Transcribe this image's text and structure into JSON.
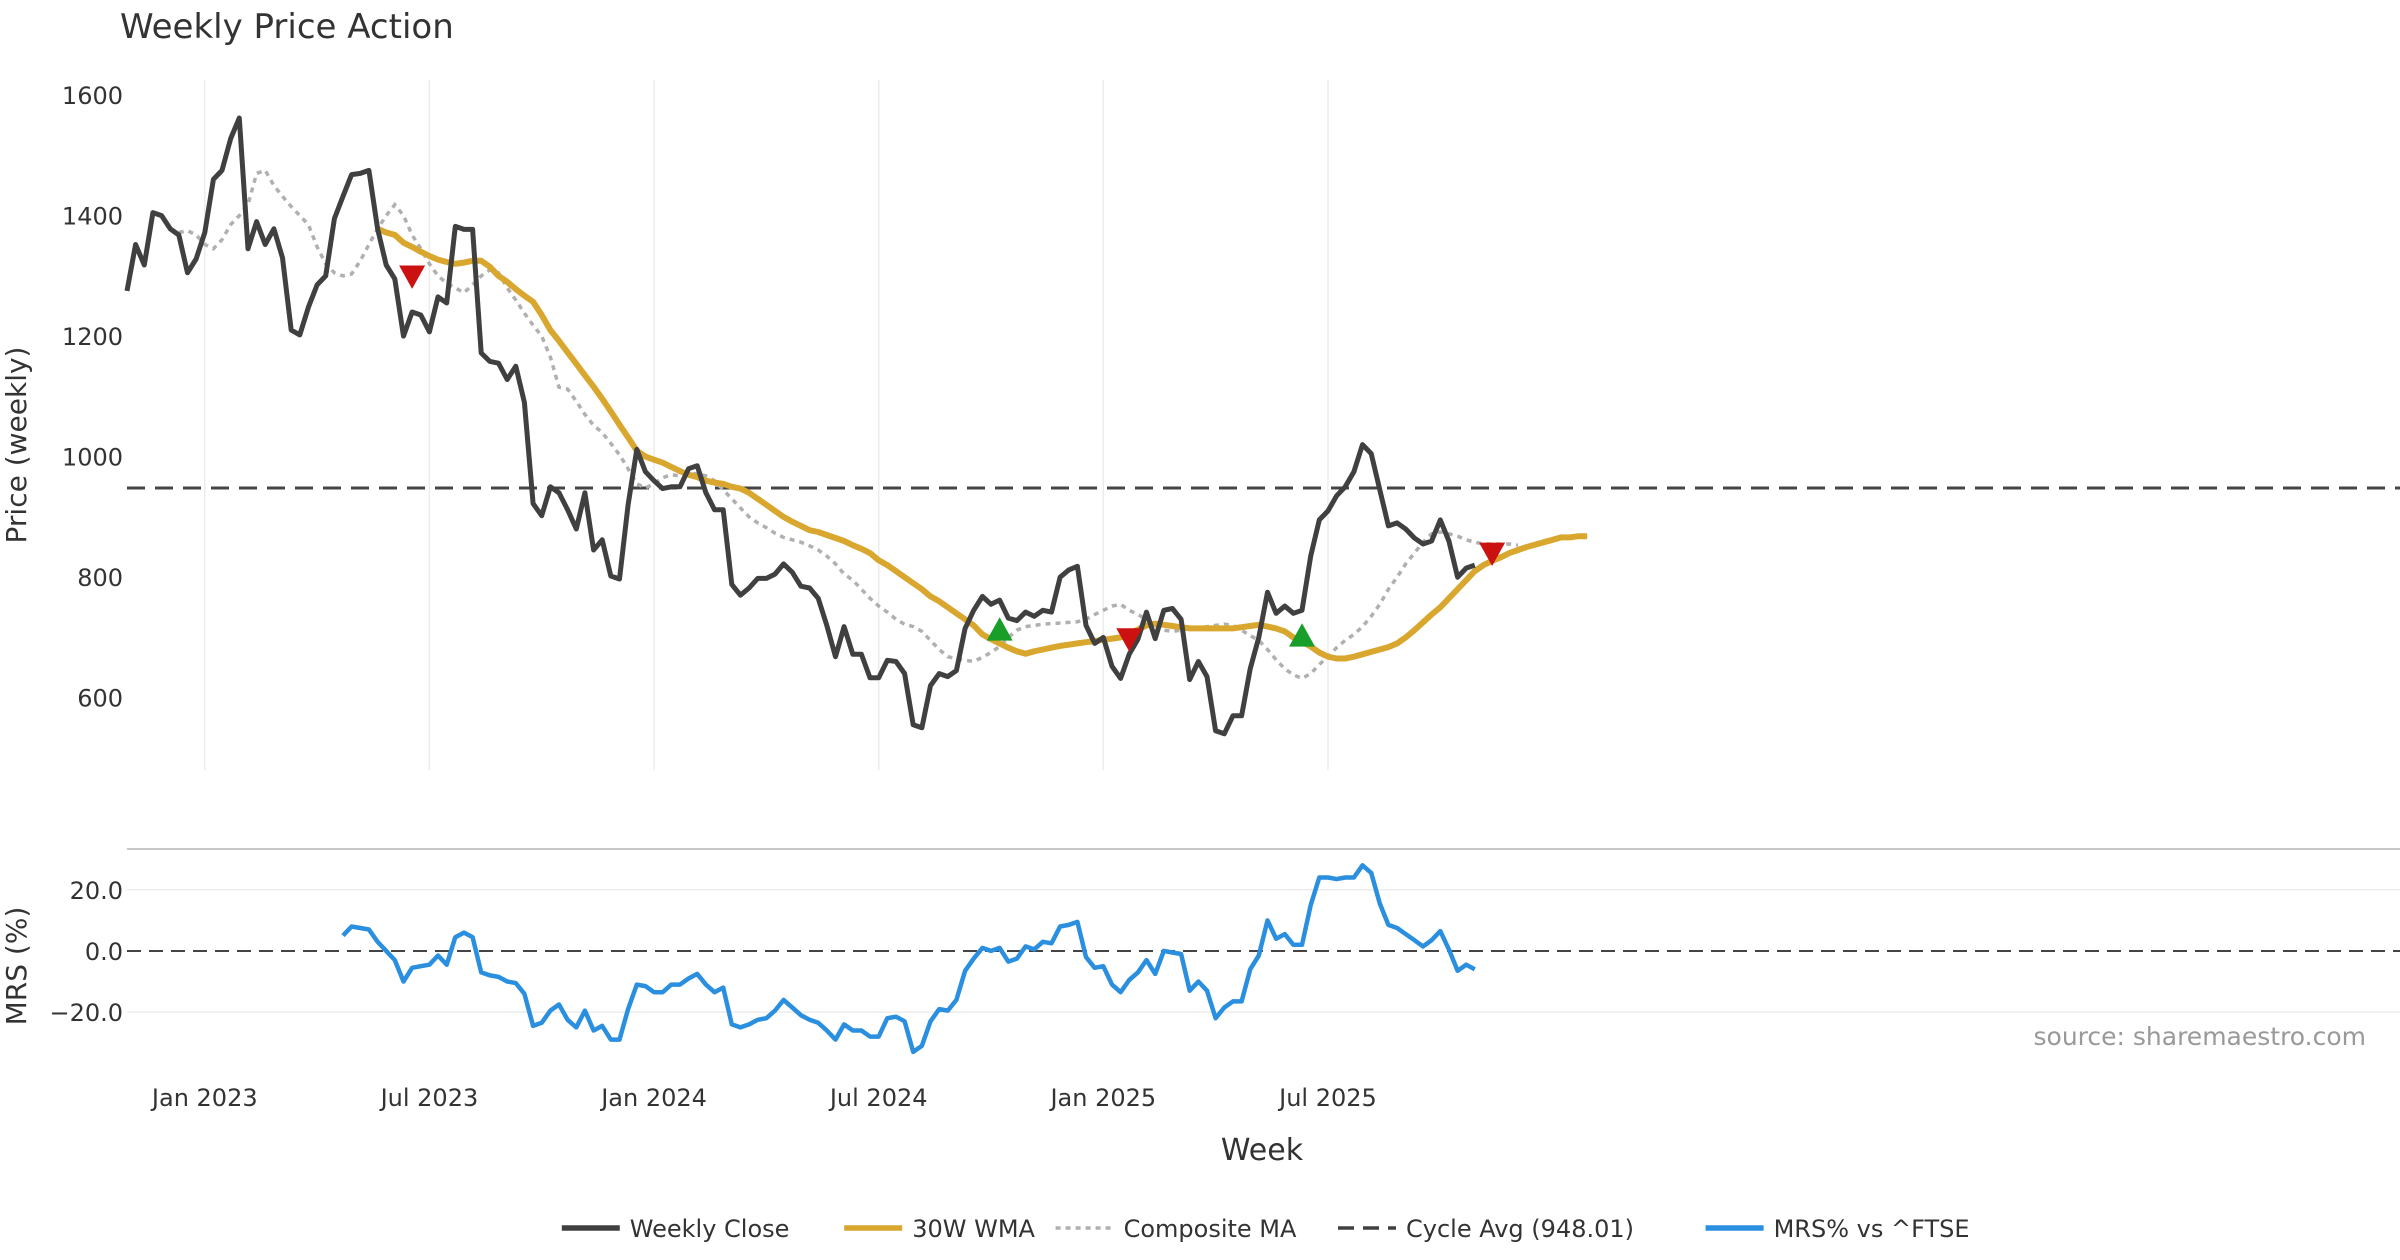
{
  "chart_data": [
    {
      "type": "line",
      "title": "Weekly Price Action",
      "ylabel": "Price (weekly)",
      "ylim": [
        480,
        1625
      ],
      "yticks": [
        600,
        800,
        1000,
        1200,
        1400,
        1600
      ],
      "grid": true,
      "reference_line": {
        "label": "Cycle Avg (948.01)",
        "value": 948.01
      },
      "series": [
        {
          "name": "Weekly Close",
          "color": "#404040",
          "values": [
            1275,
            1352,
            1318,
            1405,
            1400,
            1378,
            1368,
            1305,
            1328,
            1372,
            1460,
            1475,
            1528,
            1562,
            1345,
            1390,
            1352,
            1378,
            1330,
            1210,
            1202,
            1248,
            1285,
            1300,
            1395,
            1432,
            1468,
            1470,
            1475,
            1378,
            1318,
            1295,
            1200,
            1240,
            1235,
            1207,
            1265,
            1255,
            1382,
            1377,
            1377,
            1172,
            1158,
            1155,
            1128,
            1150,
            1090,
            922,
            902,
            950,
            940,
            912,
            880,
            940,
            845,
            862,
            802,
            797,
            920,
            1012,
            975,
            960,
            947,
            950,
            950,
            980,
            985,
            940,
            912,
            912,
            788,
            770,
            782,
            798,
            798,
            805,
            822,
            808,
            785,
            782,
            765,
            720,
            668,
            718,
            672,
            672,
            633,
            633,
            662,
            660,
            640,
            555,
            550,
            620,
            640,
            635,
            645,
            715,
            745,
            768,
            755,
            762,
            732,
            728,
            742,
            735,
            745,
            742,
            800,
            812,
            818,
            720,
            690,
            700,
            652,
            632,
            672,
            697,
            742,
            698,
            745,
            748,
            730,
            630,
            660,
            635,
            545,
            540,
            570,
            570,
            648,
            700,
            775,
            740,
            752,
            740,
            745,
            835,
            895,
            910,
            935,
            950,
            975,
            1020,
            1005,
            945,
            885,
            890,
            880,
            865,
            855,
            860,
            895,
            860,
            800,
            815,
            820
          ]
        },
        {
          "name": "30W WMA",
          "color": "#D9A62E",
          "start_index": 29,
          "values": [
            1378,
            1372,
            1368,
            1355,
            1348,
            1340,
            1333,
            1327,
            1323,
            1320,
            1322,
            1325,
            1325,
            1315,
            1300,
            1290,
            1278,
            1267,
            1257,
            1235,
            1210,
            1192,
            1173,
            1154,
            1135,
            1116,
            1096,
            1075,
            1053,
            1032,
            1010,
            1000,
            995,
            990,
            983,
            976,
            970,
            966,
            960,
            957,
            955,
            950,
            947,
            940,
            930,
            920,
            910,
            900,
            892,
            885,
            878,
            875,
            870,
            865,
            860,
            853,
            847,
            840,
            828,
            820,
            810,
            800,
            790,
            780,
            768,
            760,
            750,
            740,
            730,
            720,
            705,
            697,
            690,
            683,
            677,
            673,
            677,
            680,
            683,
            686,
            688,
            690,
            692,
            694,
            696,
            698,
            700,
            707,
            713,
            720,
            723,
            721,
            719,
            717,
            715,
            715,
            715,
            715,
            715,
            715,
            717,
            719,
            721,
            718,
            715,
            710,
            700,
            693,
            685,
            675,
            668,
            665,
            665,
            668,
            672,
            676,
            680,
            684,
            690,
            700,
            712,
            725,
            738,
            750,
            765,
            780,
            795,
            810,
            820,
            827,
            833,
            840,
            845,
            850,
            854,
            858,
            862,
            866,
            866,
            868,
            868
          ]
        },
        {
          "name": "Composite MA",
          "color": "#B0B0B0",
          "start_index": 6,
          "values": [
            1372,
            1375,
            1368,
            1352,
            1345,
            1360,
            1385,
            1400,
            1418,
            1470,
            1475,
            1450,
            1432,
            1415,
            1400,
            1385,
            1348,
            1320,
            1305,
            1300,
            1303,
            1325,
            1352,
            1378,
            1400,
            1418,
            1400,
            1368,
            1345,
            1320,
            1300,
            1288,
            1280,
            1272,
            1285,
            1300,
            1310,
            1305,
            1280,
            1260,
            1238,
            1218,
            1200,
            1165,
            1115,
            1112,
            1092,
            1070,
            1052,
            1040,
            1022,
            1003,
            980,
            955,
            948,
            955,
            965,
            970,
            968,
            970,
            972,
            968,
            960,
            945,
            930,
            915,
            900,
            890,
            882,
            873,
            866,
            862,
            858,
            852,
            845,
            835,
            822,
            805,
            795,
            780,
            765,
            752,
            742,
            730,
            722,
            718,
            710,
            695,
            680,
            668,
            665,
            662,
            660,
            667,
            675,
            685,
            700,
            712,
            718,
            720,
            722,
            723,
            724,
            725,
            726,
            730,
            738,
            745,
            752,
            755,
            745,
            738,
            730,
            720,
            712,
            710,
            712,
            715,
            717,
            718,
            720,
            722,
            720,
            712,
            703,
            695,
            680,
            663,
            648,
            638,
            632,
            640,
            655,
            668,
            683,
            695,
            705,
            718,
            735,
            755,
            780,
            800,
            822,
            840,
            858,
            872,
            875,
            872,
            868,
            862,
            858,
            855,
            855,
            855,
            855,
            853
          ]
        }
      ],
      "markers": [
        {
          "type": "sell",
          "color": "#CC1111",
          "x_index": 33,
          "value": 1300
        },
        {
          "type": "buy",
          "color": "#1A9E2A",
          "x_index": 101,
          "value": 712
        },
        {
          "type": "sell",
          "color": "#CC1111",
          "x_index": 116,
          "value": 698
        },
        {
          "type": "buy",
          "color": "#1A9E2A",
          "x_index": 136,
          "value": 702
        },
        {
          "type": "sell",
          "color": "#CC1111",
          "x_index": 158,
          "value": 840
        }
      ]
    },
    {
      "type": "line",
      "xlabel": "Week",
      "ylabel": "MRS (%)",
      "ylim": [
        -35,
        33
      ],
      "yticks": [
        -20,
        0,
        20
      ],
      "ytick_labels": [
        "−20.0",
        "0.0",
        "20.0"
      ],
      "x_tick_labels": [
        "Jan 2023",
        "Jul 2023",
        "Jan 2024",
        "Jul 2024",
        "Jan 2025",
        "Jul 2025"
      ],
      "x_tick_indices": [
        9,
        35,
        61,
        87,
        113,
        139
      ],
      "x_total_points": 171,
      "series": [
        {
          "name": "MRS% vs ^FTSE",
          "color": "#2B8FE0",
          "start_index": 25,
          "values": [
            5,
            8,
            7.5,
            7,
            3,
            0,
            -3,
            -10,
            -5.5,
            -5,
            -4.5,
            -1.5,
            -4.5,
            4.5,
            6,
            4.5,
            -7,
            -8,
            -8.5,
            -10,
            -10.5,
            -14,
            -24.5,
            -23.5,
            -19.5,
            -17.5,
            -22.5,
            -25,
            -19.5,
            -26,
            -24.5,
            -29,
            -29,
            -19,
            -11,
            -11.5,
            -13.5,
            -13.5,
            -11,
            -11,
            -9,
            -7.5,
            -11,
            -13.5,
            -12,
            -24,
            -25,
            -24,
            -22.5,
            -22,
            -19.5,
            -16,
            -18.5,
            -21,
            -22.5,
            -23.5,
            -26,
            -29,
            -24,
            -26,
            -26,
            -28,
            -28,
            -22,
            -21.5,
            -23,
            -33,
            -31,
            -23,
            -19,
            -19.5,
            -16,
            -6.5,
            -2.5,
            1,
            0,
            1,
            -3.5,
            -2.5,
            1.5,
            0.5,
            3,
            2.5,
            8,
            8.5,
            9.5,
            -2,
            -5.5,
            -5,
            -11,
            -13.5,
            -9.5,
            -7,
            -3,
            -7.5,
            0,
            -0.5,
            -1,
            -13,
            -10,
            -13,
            -22,
            -18.5,
            -16.5,
            -16.5,
            -6,
            -1.5,
            10,
            4,
            5.5,
            2,
            2,
            15,
            24,
            24,
            23.5,
            24,
            24,
            28,
            25.5,
            15.5,
            8.5,
            7.5,
            5.5,
            3.5,
            1.5,
            3.5,
            6.5,
            0.5,
            -6.5,
            -4.5,
            -6
          ]
        }
      ],
      "source_note": "source: sharemaestro.com"
    }
  ],
  "legend": [
    {
      "label": "Weekly Close",
      "style": "solid",
      "color": "#404040"
    },
    {
      "label": "30W WMA",
      "style": "solid",
      "color": "#D9A62E"
    },
    {
      "label": "Composite MA",
      "style": "dotted",
      "color": "#B0B0B0"
    },
    {
      "label": "Cycle Avg (948.01)",
      "style": "dashed",
      "color": "#404040"
    },
    {
      "label": "MRS% vs ^FTSE",
      "style": "solid",
      "color": "#2B8FE0"
    }
  ]
}
